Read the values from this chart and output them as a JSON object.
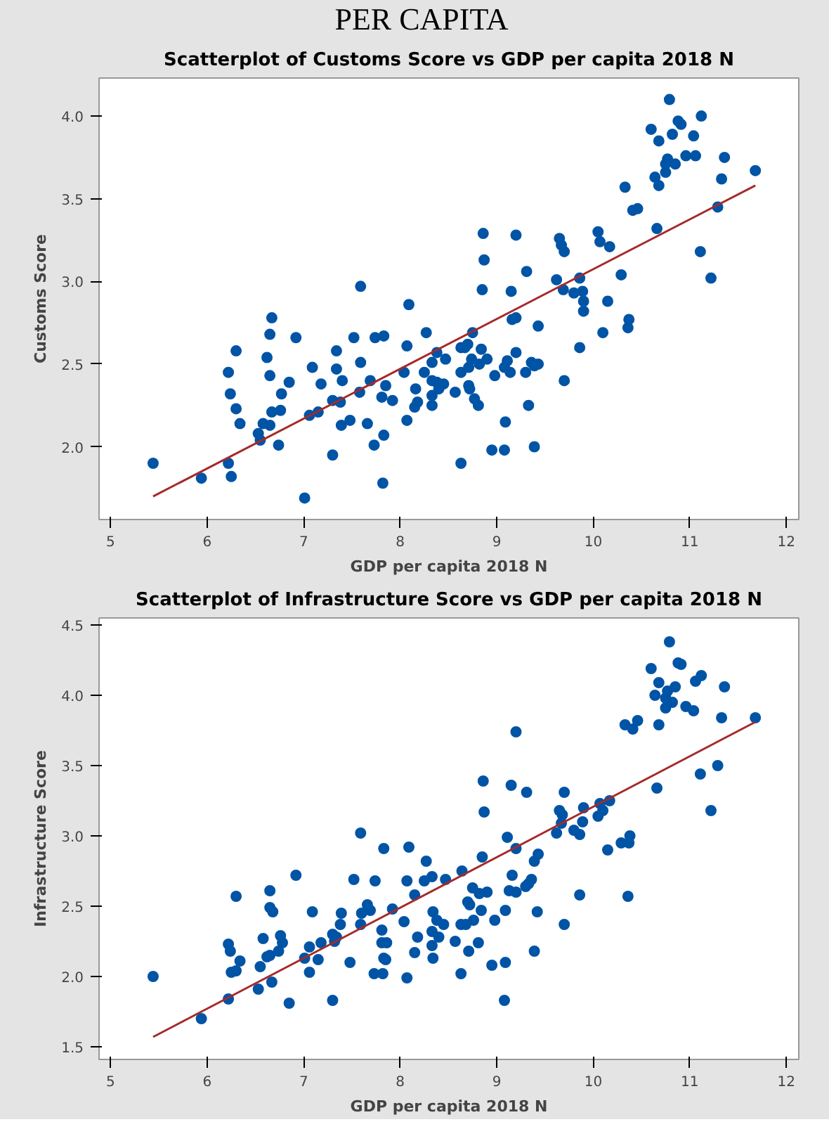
{
  "chart_data": [
    {
      "type": "scatter",
      "title": "Scatterplot of Customs Score vs GDP per capita 2018 N",
      "xlabel": "GDP per capita 2018 N",
      "ylabel": "Customs Score",
      "annotations": [
        "PER CAPITA"
      ],
      "grid": false,
      "xlim": [
        4.88,
        12.13
      ],
      "ylim": [
        1.56,
        4.23
      ],
      "xticks": [
        5,
        6,
        7,
        8,
        9,
        10,
        11,
        12
      ],
      "yticks": [
        {
          "value": 2,
          "label": "2.0"
        },
        {
          "value": 2.5,
          "label": "2.5"
        },
        {
          "value": 3,
          "label": "3.0"
        },
        {
          "value": 3.5,
          "label": "3.5"
        },
        {
          "value": 4,
          "label": "4.0"
        }
      ],
      "series": [
        {
          "marker": "circle",
          "color": "#0054a6",
          "x": [
            5.44,
            5.94,
            6.22,
            6.25,
            6.22,
            6.24,
            6.3,
            6.3,
            6.34,
            6.53,
            6.55,
            6.58,
            6.62,
            6.65,
            6.65,
            6.67,
            6.65,
            6.67,
            6.74,
            6.76,
            6.77,
            6.85,
            6.92,
            7.01,
            7.06,
            7.09,
            7.15,
            7.18,
            7.3,
            7.3,
            7.34,
            7.34,
            7.38,
            7.39,
            7.4,
            7.48,
            7.52,
            7.58,
            7.59,
            7.59,
            7.66,
            7.69,
            7.73,
            7.74,
            7.81,
            7.82,
            7.83,
            7.83,
            7.85,
            7.92,
            8.04,
            8.07,
            8.07,
            8.09,
            8.15,
            8.16,
            8.18,
            8.25,
            8.27,
            8.33,
            8.33,
            8.33,
            8.33,
            8.38,
            8.38,
            8.4,
            8.45,
            8.47,
            8.57,
            8.63,
            8.63,
            8.63,
            8.67,
            8.7,
            8.71,
            8.72,
            8.71,
            8.74,
            8.75,
            8.77,
            8.81,
            8.82,
            8.84,
            8.85,
            8.86,
            8.87,
            8.9,
            8.95,
            8.98,
            9.08,
            9.09,
            9.08,
            9.11,
            9.14,
            9.15,
            9.16,
            9.2,
            9.2,
            9.2,
            9.3,
            9.31,
            9.33,
            9.36,
            9.39,
            9.39,
            9.43,
            9.43,
            9.62,
            9.65,
            9.67,
            9.7,
            9.69,
            9.7,
            9.8,
            9.86,
            9.86,
            9.89,
            9.9,
            9.9,
            10.05,
            10.07,
            10.1,
            10.15,
            10.17,
            10.29,
            10.33,
            10.36,
            10.37,
            10.41,
            10.46,
            10.6,
            10.64,
            10.66,
            10.68,
            10.68,
            10.75,
            10.75,
            10.77,
            10.79,
            10.82,
            10.85,
            10.88,
            10.91,
            10.96,
            11.04,
            11.06,
            11.11,
            11.12,
            11.22,
            11.29,
            11.33,
            11.36,
            11.68
          ],
          "values": [
            1.9,
            1.81,
            1.9,
            1.82,
            2.45,
            2.32,
            2.58,
            2.23,
            2.14,
            2.08,
            2.04,
            2.14,
            2.54,
            2.68,
            2.43,
            2.78,
            2.13,
            2.21,
            2.01,
            2.22,
            2.32,
            2.39,
            2.66,
            1.69,
            2.19,
            2.48,
            2.21,
            2.38,
            1.95,
            2.28,
            2.58,
            2.47,
            2.27,
            2.13,
            2.4,
            2.16,
            2.66,
            2.33,
            2.97,
            2.51,
            2.14,
            2.4,
            2.01,
            2.66,
            2.3,
            1.78,
            2.07,
            2.67,
            2.37,
            2.28,
            2.45,
            2.61,
            2.16,
            2.86,
            2.24,
            2.35,
            2.27,
            2.45,
            2.69,
            2.51,
            2.4,
            2.31,
            2.25,
            2.57,
            2.39,
            2.35,
            2.38,
            2.53,
            2.33,
            1.9,
            2.6,
            2.45,
            2.6,
            2.62,
            2.37,
            2.35,
            2.48,
            2.53,
            2.69,
            2.29,
            2.25,
            2.5,
            2.59,
            2.95,
            3.29,
            3.13,
            2.53,
            1.98,
            2.43,
            1.98,
            2.15,
            2.48,
            2.52,
            2.45,
            2.94,
            2.77,
            2.78,
            3.28,
            2.57,
            2.45,
            3.06,
            2.25,
            2.51,
            2.0,
            2.49,
            2.5,
            2.73,
            3.01,
            3.26,
            3.22,
            3.18,
            2.95,
            2.4,
            2.93,
            2.6,
            3.02,
            2.94,
            2.88,
            2.82,
            3.3,
            3.24,
            2.69,
            2.88,
            3.21,
            3.04,
            3.57,
            2.72,
            2.77,
            3.43,
            3.44,
            3.92,
            3.63,
            3.32,
            3.58,
            3.85,
            3.66,
            3.71,
            3.74,
            4.1,
            3.89,
            3.71,
            3.97,
            3.95,
            3.76,
            3.88,
            3.76,
            3.18,
            4.0,
            3.02,
            3.45,
            3.62,
            3.75,
            3.67
          ]
        },
        {
          "type": "line",
          "color": "#a52a2a",
          "x": [
            5.44,
            11.68
          ],
          "values": [
            1.7,
            3.58
          ]
        }
      ]
    },
    {
      "type": "scatter",
      "title": "Scatterplot of Infrastructure Score vs GDP per capita 2018 N",
      "xlabel": "GDP per capita 2018 N",
      "ylabel": "Infrastructure Score",
      "grid": false,
      "xlim": [
        4.88,
        12.13
      ],
      "ylim": [
        1.41,
        4.55
      ],
      "xticks": [
        5,
        6,
        7,
        8,
        9,
        10,
        11,
        12
      ],
      "yticks": [
        1.5,
        {
          "value": 2,
          "label": "2.0"
        },
        2.5,
        {
          "value": 3,
          "label": "3.0"
        },
        3.5,
        {
          "value": 4,
          "label": "4.0"
        },
        4.5
      ],
      "series": [
        {
          "marker": "circle",
          "color": "#0054a6",
          "x": [
            5.44,
            5.94,
            6.22,
            6.22,
            6.24,
            6.25,
            6.3,
            6.3,
            6.34,
            6.53,
            6.55,
            6.58,
            6.62,
            6.65,
            6.65,
            6.68,
            6.67,
            6.74,
            6.76,
            6.78,
            6.65,
            6.85,
            6.92,
            7.01,
            7.06,
            7.06,
            7.09,
            7.15,
            7.18,
            7.3,
            7.3,
            7.32,
            7.34,
            7.38,
            7.39,
            7.48,
            7.52,
            7.59,
            7.59,
            7.6,
            7.66,
            7.69,
            7.73,
            7.74,
            7.81,
            7.82,
            7.83,
            7.83,
            7.86,
            7.85,
            7.81,
            7.92,
            8.04,
            8.07,
            8.07,
            8.09,
            8.15,
            8.15,
            8.18,
            8.25,
            8.27,
            8.33,
            8.34,
            8.33,
            8.33,
            8.34,
            8.38,
            8.4,
            8.45,
            8.47,
            8.57,
            8.63,
            8.64,
            8.63,
            8.68,
            8.7,
            8.71,
            8.72,
            8.75,
            8.76,
            8.81,
            8.82,
            8.84,
            8.85,
            8.86,
            8.87,
            8.9,
            8.95,
            8.98,
            9.08,
            9.09,
            9.09,
            9.11,
            9.13,
            9.15,
            9.16,
            9.2,
            9.2,
            9.2,
            9.3,
            9.31,
            9.33,
            9.36,
            9.39,
            9.39,
            9.42,
            9.43,
            9.62,
            9.65,
            9.67,
            9.68,
            9.7,
            9.7,
            9.8,
            9.86,
            9.86,
            9.89,
            9.9,
            10.05,
            10.07,
            10.1,
            10.15,
            10.17,
            10.29,
            10.33,
            10.36,
            10.37,
            10.38,
            10.41,
            10.46,
            10.6,
            10.64,
            10.66,
            10.68,
            10.68,
            10.75,
            10.75,
            10.77,
            10.79,
            10.82,
            10.85,
            10.88,
            10.91,
            10.96,
            11.04,
            11.06,
            11.11,
            11.12,
            11.22,
            11.29,
            11.33,
            11.36,
            11.68
          ],
          "values": [
            2.0,
            1.7,
            1.84,
            2.23,
            2.18,
            2.03,
            2.57,
            2.04,
            2.11,
            1.91,
            2.07,
            2.27,
            2.14,
            2.61,
            2.49,
            2.46,
            1.96,
            2.18,
            2.29,
            2.24,
            2.15,
            1.81,
            2.72,
            2.13,
            2.21,
            2.03,
            2.46,
            2.12,
            2.24,
            1.83,
            2.3,
            2.25,
            2.28,
            2.37,
            2.45,
            2.1,
            2.69,
            2.37,
            3.02,
            2.45,
            2.51,
            2.47,
            2.02,
            2.68,
            2.33,
            2.02,
            2.13,
            2.91,
            2.24,
            2.12,
            2.24,
            2.48,
            2.39,
            2.68,
            1.99,
            2.92,
            2.58,
            2.17,
            2.28,
            2.68,
            2.82,
            2.71,
            2.46,
            2.32,
            2.22,
            2.13,
            2.4,
            2.28,
            2.37,
            2.69,
            2.25,
            2.02,
            2.75,
            2.37,
            2.37,
            2.53,
            2.18,
            2.51,
            2.63,
            2.4,
            2.24,
            2.59,
            2.47,
            2.85,
            3.39,
            3.17,
            2.6,
            2.08,
            2.4,
            1.83,
            2.1,
            2.47,
            2.99,
            2.61,
            3.36,
            2.72,
            2.6,
            2.91,
            3.74,
            2.64,
            3.31,
            2.66,
            2.69,
            2.82,
            2.18,
            2.46,
            2.87,
            3.02,
            3.18,
            3.09,
            3.15,
            3.31,
            2.37,
            3.04,
            3.01,
            2.58,
            3.1,
            3.2,
            3.14,
            3.23,
            3.18,
            2.9,
            3.25,
            2.95,
            3.79,
            2.57,
            2.95,
            3.0,
            3.76,
            3.82,
            4.19,
            4.0,
            3.34,
            3.79,
            4.09,
            3.91,
            3.98,
            4.03,
            4.38,
            3.95,
            4.06,
            4.23,
            4.22,
            3.92,
            3.89,
            4.1,
            3.44,
            4.14,
            3.18,
            3.5,
            3.84,
            4.06,
            3.84
          ]
        },
        {
          "type": "line",
          "color": "#a52a2a",
          "x": [
            5.44,
            11.68
          ],
          "values": [
            1.57,
            3.81
          ]
        }
      ]
    }
  ]
}
